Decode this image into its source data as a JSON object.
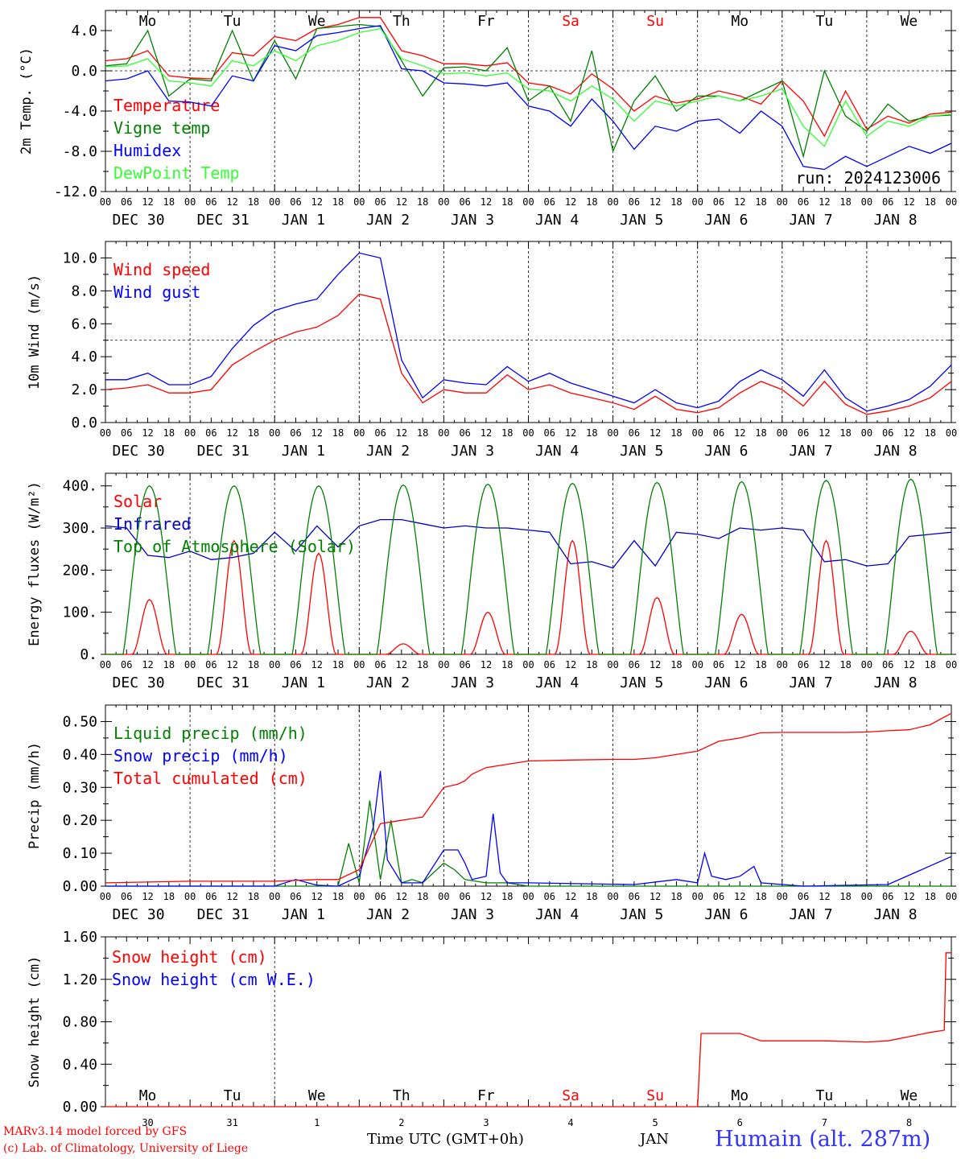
{
  "chart_data": [
    {
      "type": "line",
      "ylabel": "2m Temp. (°C)",
      "ylim": [
        -12,
        6
      ],
      "yticks": [
        4.0,
        0.0,
        -4.0,
        -8.0,
        -12.0
      ],
      "ytick_labels": [
        "4.0",
        "0.0",
        "-4.0",
        "-8.0",
        "-12.0"
      ],
      "reference_line": 0,
      "annotation": "run: 2024123006",
      "weekdays": [
        {
          "label": "Mo",
          "color": "#000000"
        },
        {
          "label": "Tu",
          "color": "#000000"
        },
        {
          "label": "We",
          "color": "#000000"
        },
        {
          "label": "Th",
          "color": "#000000"
        },
        {
          "label": "Fr",
          "color": "#000000"
        },
        {
          "label": "Sa",
          "color": "#ff0000"
        },
        {
          "label": "Su",
          "color": "#ff0000"
        },
        {
          "label": "Mo",
          "color": "#000000"
        },
        {
          "label": "Tu",
          "color": "#000000"
        },
        {
          "label": "We",
          "color": "#000000"
        }
      ],
      "series": [
        {
          "name": "Temperature",
          "color": "#ff0000",
          "x": [
            0,
            6,
            12,
            18,
            24,
            30,
            36,
            42,
            48,
            54,
            60,
            66,
            72,
            78,
            84,
            90,
            96,
            102,
            108,
            114,
            120,
            126,
            132,
            138,
            144,
            150,
            156,
            162,
            168,
            174,
            180,
            186,
            192,
            198,
            204,
            210,
            216,
            222,
            228,
            234,
            240
          ],
          "y": [
            1.0,
            1.2,
            2.0,
            -0.5,
            -0.7,
            -0.8,
            1.8,
            1.5,
            3.4,
            3.0,
            4.2,
            4.6,
            5.3,
            5.3,
            2.0,
            1.5,
            0.7,
            0.7,
            0.5,
            0.8,
            -1.2,
            -1.5,
            -2.3,
            -0.3,
            -1.8,
            -4.0,
            -2.5,
            -3.2,
            -2.8,
            -2.0,
            -2.5,
            -3.3,
            -1.0,
            -3.0,
            -6.5,
            -2.0,
            -5.8,
            -4.5,
            -5.2,
            -4.3,
            -4.1
          ]
        },
        {
          "name": "Vigne temp",
          "color": "#008000",
          "x": [
            0,
            6,
            12,
            18,
            24,
            30,
            36,
            42,
            48,
            54,
            60,
            66,
            72,
            78,
            84,
            90,
            96,
            102,
            108,
            114,
            120,
            126,
            132,
            138,
            144,
            150,
            156,
            162,
            168,
            174,
            180,
            186,
            192,
            198,
            204,
            210,
            216,
            222,
            228,
            234,
            240
          ],
          "y": [
            0.5,
            0.7,
            4.0,
            -2.5,
            -0.8,
            -1.0,
            4.0,
            -1.0,
            3.0,
            -0.8,
            4.2,
            4.4,
            4.6,
            4.4,
            1.0,
            -2.5,
            0.3,
            0.4,
            0.0,
            2.3,
            -3.0,
            -1.5,
            -5.0,
            2.0,
            -8.0,
            -3.0,
            -0.5,
            -4.0,
            -2.5,
            -2.5,
            -3.0,
            -2.0,
            -1.0,
            -8.5,
            0.0,
            -4.5,
            -6.0,
            -3.3,
            -5.0,
            -4.5,
            -4.4
          ]
        },
        {
          "name": "Humidex",
          "color": "#0000ff",
          "x": [
            0,
            6,
            12,
            18,
            24,
            30,
            36,
            42,
            48,
            54,
            60,
            66,
            72,
            78,
            84,
            90,
            96,
            102,
            108,
            114,
            120,
            126,
            132,
            138,
            144,
            150,
            156,
            162,
            168,
            174,
            180,
            186,
            192,
            198,
            204,
            210,
            216,
            222,
            228,
            234,
            240
          ],
          "y": [
            -1.0,
            -0.8,
            0.0,
            -3.0,
            -3.1,
            -3.5,
            -0.5,
            -1.0,
            2.5,
            2.0,
            3.5,
            3.8,
            4.2,
            4.5,
            0.2,
            0.0,
            -1.2,
            -1.3,
            -1.5,
            -1.2,
            -3.5,
            -4.0,
            -5.5,
            -2.8,
            -5.0,
            -7.8,
            -5.5,
            -6.0,
            -5.0,
            -4.8,
            -6.2,
            -4.0,
            -5.5,
            -9.5,
            -9.8,
            -8.5,
            -9.5,
            -8.5,
            -7.5,
            -8.2,
            -7.2
          ]
        },
        {
          "name": "DewPoint Temp",
          "color": "#33ff33",
          "x": [
            0,
            6,
            12,
            18,
            24,
            30,
            36,
            42,
            48,
            54,
            60,
            66,
            72,
            78,
            84,
            90,
            96,
            102,
            108,
            114,
            120,
            126,
            132,
            138,
            144,
            150,
            156,
            162,
            168,
            174,
            180,
            186,
            192,
            198,
            204,
            210,
            216,
            222,
            228,
            234,
            240
          ],
          "y": [
            0.4,
            0.5,
            1.2,
            -1.0,
            -1.2,
            -1.5,
            1.0,
            0.5,
            2.0,
            1.0,
            2.5,
            3.0,
            3.8,
            4.2,
            1.2,
            0.5,
            -0.3,
            -0.2,
            -0.5,
            -0.2,
            -1.8,
            -2.0,
            -3.0,
            -1.5,
            -2.8,
            -5.0,
            -3.0,
            -3.5,
            -3.0,
            -2.5,
            -3.0,
            -2.5,
            -1.8,
            -5.5,
            -7.5,
            -3.0,
            -6.5,
            -5.0,
            -5.5,
            -4.5,
            -4.3
          ]
        }
      ]
    },
    {
      "type": "line",
      "ylabel": "10m Wind (m/s)",
      "ylim": [
        0,
        11
      ],
      "yticks": [
        10.0,
        8.0,
        6.0,
        4.0,
        2.0,
        0.0
      ],
      "ytick_labels": [
        "10.0",
        "8.0",
        "6.0",
        "4.0",
        "2.0",
        "0.0"
      ],
      "reference_line": 5,
      "series": [
        {
          "name": "Wind speed",
          "color": "#ff0000",
          "x": [
            0,
            6,
            12,
            18,
            24,
            30,
            36,
            42,
            48,
            54,
            60,
            66,
            72,
            78,
            84,
            90,
            96,
            102,
            108,
            114,
            120,
            126,
            132,
            138,
            144,
            150,
            156,
            162,
            168,
            174,
            180,
            186,
            192,
            198,
            204,
            210,
            216,
            222,
            228,
            234,
            240
          ],
          "y": [
            2.0,
            2.1,
            2.3,
            1.8,
            1.8,
            2.0,
            3.5,
            4.3,
            5.0,
            5.5,
            5.8,
            6.5,
            7.8,
            7.5,
            3.0,
            1.2,
            2.0,
            1.8,
            1.8,
            2.9,
            2.0,
            2.3,
            1.8,
            1.5,
            1.2,
            0.8,
            1.6,
            0.8,
            0.6,
            0.9,
            1.8,
            2.5,
            2.0,
            1.0,
            2.5,
            1.1,
            0.5,
            0.7,
            1.0,
            1.5,
            2.5
          ]
        },
        {
          "name": "Wind gust",
          "color": "#0000ff",
          "x": [
            0,
            6,
            12,
            18,
            24,
            30,
            36,
            42,
            48,
            54,
            60,
            66,
            72,
            78,
            84,
            90,
            96,
            102,
            108,
            114,
            120,
            126,
            132,
            138,
            144,
            150,
            156,
            162,
            168,
            174,
            180,
            186,
            192,
            198,
            204,
            210,
            216,
            222,
            228,
            234,
            240
          ],
          "y": [
            2.6,
            2.6,
            3.0,
            2.3,
            2.3,
            2.8,
            4.5,
            5.9,
            6.8,
            7.2,
            7.5,
            9.0,
            10.3,
            10.0,
            3.8,
            1.5,
            2.6,
            2.4,
            2.3,
            3.4,
            2.5,
            3.0,
            2.4,
            2.0,
            1.6,
            1.2,
            2.0,
            1.2,
            0.9,
            1.3,
            2.5,
            3.2,
            2.6,
            1.6,
            3.2,
            1.5,
            0.7,
            1.0,
            1.4,
            2.2,
            3.5
          ]
        }
      ]
    },
    {
      "type": "line",
      "ylabel": "Energy fluxes (W/m²)",
      "ylim": [
        0,
        430
      ],
      "yticks": [
        400,
        300,
        200,
        100,
        0
      ],
      "ytick_labels": [
        "400.",
        "300.",
        "200.",
        "100.",
        "0."
      ],
      "series": [
        {
          "name": "Solar",
          "color": "#ff0000",
          "day_peaks": [
            130,
            270,
            240,
            25,
            100,
            270,
            135,
            95,
            270,
            55
          ]
        },
        {
          "name": "Infrared",
          "color": "#0000cc",
          "x": [
            0,
            6,
            12,
            18,
            24,
            30,
            36,
            42,
            48,
            54,
            60,
            66,
            72,
            78,
            84,
            90,
            96,
            102,
            108,
            114,
            120,
            126,
            132,
            138,
            144,
            150,
            156,
            162,
            168,
            174,
            180,
            186,
            192,
            198,
            204,
            210,
            216,
            222,
            228,
            234,
            240
          ],
          "y": [
            305,
            300,
            235,
            230,
            245,
            225,
            230,
            240,
            290,
            245,
            305,
            255,
            305,
            320,
            320,
            310,
            300,
            305,
            300,
            300,
            295,
            290,
            215,
            220,
            205,
            270,
            210,
            290,
            285,
            275,
            300,
            295,
            300,
            295,
            220,
            225,
            210,
            215,
            280,
            285,
            290
          ]
        },
        {
          "name": "Top of Atmosphere (Solar)",
          "color": "#008000",
          "day_peaks": [
            400,
            400,
            400,
            402,
            404,
            406,
            408,
            410,
            413,
            416
          ]
        }
      ]
    },
    {
      "type": "line",
      "ylabel": "Precip (mm/h)",
      "ylim": [
        0,
        0.55
      ],
      "yticks": [
        0.5,
        0.4,
        0.3,
        0.2,
        0.1,
        0.0
      ],
      "ytick_labels": [
        "0.50",
        "0.40",
        "0.30",
        "0.20",
        "0.10",
        "0.00"
      ],
      "series": [
        {
          "name": "Liquid precip (mm/h)",
          "color": "#008000",
          "x": [
            0,
            60,
            66,
            69,
            72,
            75,
            78,
            81,
            84,
            87,
            90,
            96,
            99,
            102,
            108,
            114,
            120,
            240
          ],
          "y": [
            0,
            0,
            0,
            0.13,
            0.01,
            0.26,
            0.02,
            0.2,
            0.01,
            0.02,
            0.01,
            0.07,
            0.05,
            0.02,
            0.01,
            0.01,
            0,
            0
          ]
        },
        {
          "name": "Snow precip (mm/h)",
          "color": "#0000ff",
          "x": [
            0,
            48,
            54,
            60,
            66,
            72,
            76,
            78,
            80,
            84,
            90,
            96,
            100,
            102,
            104,
            108,
            110,
            112,
            114,
            120,
            150,
            162,
            168,
            170,
            172,
            176,
            180,
            184,
            186,
            198,
            222,
            240
          ],
          "y": [
            0,
            0,
            0.02,
            0.003,
            0,
            0.03,
            0.18,
            0.35,
            0.08,
            0.01,
            0.01,
            0.11,
            0.11,
            0.07,
            0.02,
            0.03,
            0.22,
            0.04,
            0.01,
            0.01,
            0.005,
            0.02,
            0.01,
            0.1,
            0.03,
            0.02,
            0.03,
            0.06,
            0.01,
            0,
            0.005,
            0.09
          ]
        },
        {
          "name": "Total cumulated (cm)",
          "color": "#ff0000",
          "x": [
            0,
            24,
            48,
            60,
            66,
            72,
            78,
            84,
            90,
            96,
            100,
            102,
            104,
            108,
            114,
            120,
            132,
            144,
            150,
            156,
            162,
            168,
            174,
            180,
            186,
            192,
            198,
            204,
            210,
            216,
            222,
            228,
            234,
            240
          ],
          "y": [
            0.01,
            0.015,
            0.015,
            0.02,
            0.02,
            0.05,
            0.19,
            0.2,
            0.21,
            0.3,
            0.31,
            0.32,
            0.34,
            0.36,
            0.37,
            0.38,
            0.383,
            0.385,
            0.385,
            0.39,
            0.4,
            0.41,
            0.44,
            0.45,
            0.466,
            0.467,
            0.467,
            0.467,
            0.467,
            0.468,
            0.472,
            0.475,
            0.49,
            0.525
          ]
        }
      ]
    },
    {
      "type": "line",
      "ylabel": "Snow height (cm)",
      "ylim": [
        0,
        1.6
      ],
      "yticks": [
        1.6,
        1.2,
        0.8,
        0.4,
        0.0
      ],
      "ytick_labels": [
        "1.60",
        "1.20",
        "0.80",
        "0.40",
        "0.00"
      ],
      "weekdays": [
        {
          "label": "Mo",
          "color": "#000000"
        },
        {
          "label": "Tu",
          "color": "#000000"
        },
        {
          "label": "We",
          "color": "#000000"
        },
        {
          "label": "Th",
          "color": "#000000"
        },
        {
          "label": "Fr",
          "color": "#000000"
        },
        {
          "label": "Sa",
          "color": "#ff0000"
        },
        {
          "label": "Su",
          "color": "#ff0000"
        },
        {
          "label": "Mo",
          "color": "#000000"
        },
        {
          "label": "Tu",
          "color": "#000000"
        },
        {
          "label": "We",
          "color": "#000000"
        }
      ],
      "day_numbers": [
        "30",
        "31",
        "1",
        "2",
        "3",
        "4",
        "5",
        "6",
        "7",
        "8"
      ],
      "month_label": "JAN",
      "xlabel": "Time UTC (GMT+0h)",
      "series": [
        {
          "name": "Snow height (cm)",
          "color": "#ff0000",
          "x": [
            0,
            168,
            169,
            174,
            180,
            186,
            192,
            204,
            216,
            222,
            228,
            234,
            238,
            238.5,
            240
          ],
          "y": [
            0,
            0,
            0.69,
            0.69,
            0.69,
            0.62,
            0.62,
            0.62,
            0.61,
            0.62,
            0.66,
            0.7,
            0.72,
            1.45,
            1.45
          ]
        },
        {
          "name": "Snow height (cm W.E.)",
          "color": "#0000ff",
          "x": [],
          "y": []
        }
      ]
    }
  ],
  "x_axis": {
    "hour_labels": [
      "00",
      "06",
      "12",
      "18"
    ],
    "date_labels": [
      "DEC 30",
      "DEC 31",
      "JAN  1",
      "JAN  2",
      "JAN  3",
      "JAN  4",
      "JAN  5",
      "JAN  6",
      "JAN  7",
      "JAN  8"
    ]
  },
  "footer": {
    "credit_line1": "MARv3.14 model forced by GFS",
    "credit_line2": "(c) Lab. of Climatology, University of Liege",
    "location": "Humain (alt. 287m)",
    "credit_color": "#ff0000",
    "location_color": "#3333ff"
  }
}
